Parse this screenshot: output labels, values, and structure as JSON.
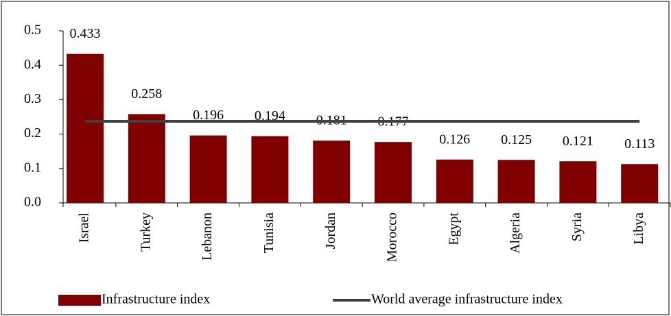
{
  "chart_data": {
    "type": "bar",
    "categories": [
      "Israel",
      "Turkey",
      "Lebanon",
      "Tunisia",
      "Jordan",
      "Morocco",
      "Egypt",
      "Algeria",
      "Syria",
      "Libya"
    ],
    "series": [
      {
        "name": "Infrastructure index",
        "type": "bar",
        "color": "#800000",
        "values": [
          0.433,
          0.258,
          0.196,
          0.194,
          0.181,
          0.177,
          0.126,
          0.125,
          0.121,
          0.113
        ]
      },
      {
        "name": "World average infrastructure index",
        "type": "line",
        "color": "#404040",
        "values": [
          0.237,
          0.237,
          0.237,
          0.237,
          0.237,
          0.237,
          0.237,
          0.237,
          0.237,
          0.237
        ]
      }
    ],
    "ylim": [
      0,
      0.5
    ],
    "yticks": [
      {
        "value": 0,
        "label": "0.0"
      },
      0.1,
      0.2,
      0.3,
      0.4,
      0.5
    ],
    "legend": "bottom"
  }
}
